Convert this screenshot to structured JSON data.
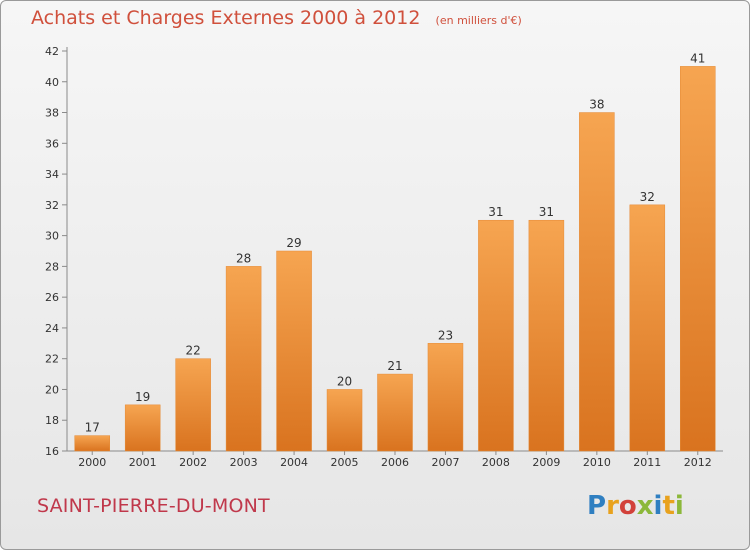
{
  "title": "Achats et Charges Externes 2000 à 2012",
  "subtitle": "(en milliers d'€)",
  "place": "SAINT-PIERRE-DU-MONT",
  "logo": {
    "text": "Proxiti",
    "colors": [
      "#2f7fc1",
      "#e8a21e",
      "#d2413a",
      "#8cb83a",
      "#2f7fc1",
      "#e8a21e",
      "#8cb83a"
    ]
  },
  "colors": {
    "bar_light": "#f6a551",
    "bar_dark": "#d9731f",
    "title": "#d0503c",
    "place": "#c0384b"
  },
  "chart_data": {
    "type": "bar",
    "categories": [
      "2000",
      "2001",
      "2002",
      "2003",
      "2004",
      "2005",
      "2006",
      "2007",
      "2008",
      "2009",
      "2010",
      "2011",
      "2012"
    ],
    "values": [
      17,
      19,
      22,
      28,
      29,
      20,
      21,
      23,
      31,
      31,
      38,
      32,
      41
    ],
    "ylim": [
      16,
      42
    ],
    "yticks": [
      "16",
      "18",
      "20",
      "22",
      "24",
      "26",
      "28",
      "30",
      "32",
      "34",
      "36",
      "38",
      "40",
      "42"
    ],
    "grid": false,
    "data_labels": true
  }
}
